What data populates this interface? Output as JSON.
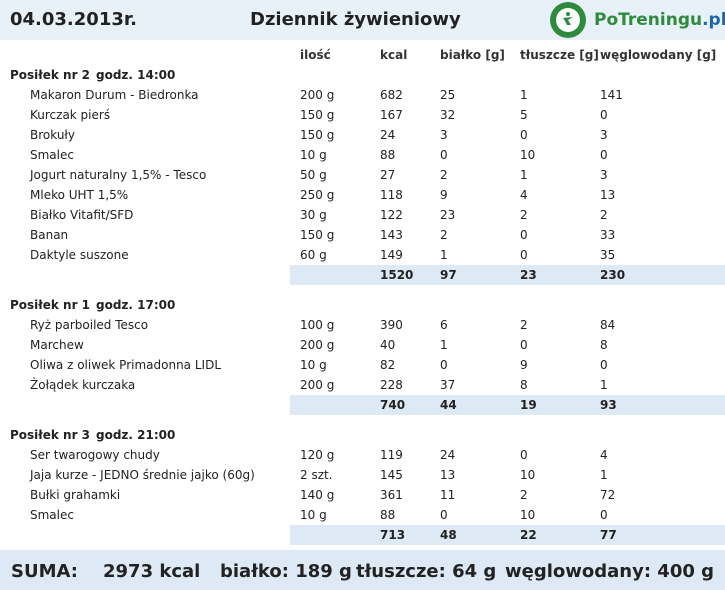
{
  "header": {
    "date": "04.03.2013r.",
    "title": "Dziennik żywieniowy",
    "logo_text_green": "PoTreningu",
    "logo_text_blue": ".pl"
  },
  "columns": {
    "qty": "ilość",
    "kcal": "kcal",
    "protein": "białko [g]",
    "fat": "tłuszcze [g]",
    "carbs": "węglowodany [g]"
  },
  "meals": [
    {
      "label": "Posiłek nr 2",
      "time": "godz. 14:00",
      "items": [
        {
          "name": "Makaron Durum - Biedronka",
          "qty": "200 g",
          "kcal": "682",
          "protein": "25",
          "fat": "1",
          "carbs": "141"
        },
        {
          "name": "Kurczak pierś",
          "qty": "150 g",
          "kcal": "167",
          "protein": "32",
          "fat": "5",
          "carbs": "0"
        },
        {
          "name": "Brokuły",
          "qty": "150 g",
          "kcal": "24",
          "protein": "3",
          "fat": "0",
          "carbs": "3"
        },
        {
          "name": "Smalec",
          "qty": "10 g",
          "kcal": "88",
          "protein": "0",
          "fat": "10",
          "carbs": "0"
        },
        {
          "name": "Jogurt naturalny 1,5% - Tesco",
          "qty": "50 g",
          "kcal": "27",
          "protein": "2",
          "fat": "1",
          "carbs": "3"
        },
        {
          "name": "Mleko UHT 1,5%",
          "qty": "250 g",
          "kcal": "118",
          "protein": "9",
          "fat": "4",
          "carbs": "13"
        },
        {
          "name": "Białko Vitafit/SFD",
          "qty": "30 g",
          "kcal": "122",
          "protein": "23",
          "fat": "2",
          "carbs": "2"
        },
        {
          "name": "Banan",
          "qty": "150 g",
          "kcal": "143",
          "protein": "2",
          "fat": "0",
          "carbs": "33"
        },
        {
          "name": "Daktyle suszone",
          "qty": "60 g",
          "kcal": "149",
          "protein": "1",
          "fat": "0",
          "carbs": "35"
        }
      ],
      "total": {
        "kcal": "1520",
        "protein": "97",
        "fat": "23",
        "carbs": "230"
      }
    },
    {
      "label": "Posiłek nr 1",
      "time": "godz. 17:00",
      "items": [
        {
          "name": "Ryż parboiled Tesco",
          "qty": "100 g",
          "kcal": "390",
          "protein": "6",
          "fat": "2",
          "carbs": "84"
        },
        {
          "name": "Marchew",
          "qty": "200 g",
          "kcal": "40",
          "protein": "1",
          "fat": "0",
          "carbs": "8"
        },
        {
          "name": "Oliwa z oliwek Primadonna LIDL",
          "qty": "10 g",
          "kcal": "82",
          "protein": "0",
          "fat": "9",
          "carbs": "0"
        },
        {
          "name": "Żołądek kurczaka",
          "qty": "200 g",
          "kcal": "228",
          "protein": "37",
          "fat": "8",
          "carbs": "1"
        }
      ],
      "total": {
        "kcal": "740",
        "protein": "44",
        "fat": "19",
        "carbs": "93"
      }
    },
    {
      "label": "Posiłek nr 3",
      "time": "godz. 21:00",
      "items": [
        {
          "name": "Ser twarogowy chudy",
          "qty": "120 g",
          "kcal": "119",
          "protein": "24",
          "fat": "0",
          "carbs": "4"
        },
        {
          "name": "Jaja kurze - JEDNO średnie jajko (60g)",
          "qty": "2 szt.",
          "kcal": "145",
          "protein": "13",
          "fat": "10",
          "carbs": "1"
        },
        {
          "name": "Bułki grahamki",
          "qty": "140 g",
          "kcal": "361",
          "protein": "11",
          "fat": "2",
          "carbs": "72"
        },
        {
          "name": "Smalec",
          "qty": "10 g",
          "kcal": "88",
          "protein": "0",
          "fat": "10",
          "carbs": "0"
        }
      ],
      "total": {
        "kcal": "713",
        "protein": "48",
        "fat": "22",
        "carbs": "77"
      }
    }
  ],
  "summary": {
    "label": "SUMA:",
    "kcal": "2973 kcal",
    "protein": "białko: 189 g",
    "fat": "tłuszcze: 64 g",
    "carbs": "węglowodany: 400 g"
  }
}
